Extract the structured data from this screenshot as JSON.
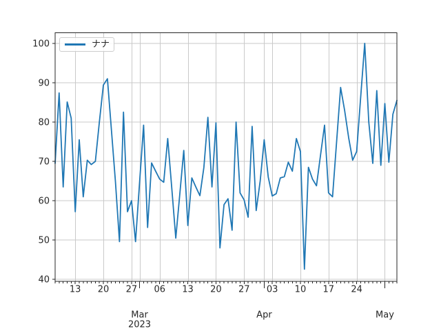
{
  "chart_data": {
    "type": "line",
    "title": "",
    "xlabel": "",
    "ylabel": "",
    "grid": true,
    "legend_position": "upper left",
    "background": "#ffffff",
    "colors": {
      "line": "#1f77b4",
      "grid": "#c9c9c9",
      "spine": "#262626",
      "tick_label": "#262626",
      "legend_border": "#cccccc"
    },
    "ylim": [
      39.5,
      102.7
    ],
    "yticks": [
      40,
      50,
      60,
      70,
      80,
      90,
      100
    ],
    "xticks_week": [
      {
        "date": "2023-02-13",
        "label": "13"
      },
      {
        "date": "2023-02-20",
        "label": "20"
      },
      {
        "date": "2023-02-27",
        "label": "27"
      },
      {
        "date": "2023-03-06",
        "label": "06"
      },
      {
        "date": "2023-03-13",
        "label": "13"
      },
      {
        "date": "2023-03-20",
        "label": "20"
      },
      {
        "date": "2023-03-27",
        "label": "27"
      },
      {
        "date": "2023-04-03",
        "label": "03"
      },
      {
        "date": "2023-04-10",
        "label": "10"
      },
      {
        "date": "2023-04-17",
        "label": "17"
      },
      {
        "date": "2023-04-24",
        "label": "24"
      },
      {
        "date": "2023-05-01",
        "label": ""
      }
    ],
    "xticks_month": [
      {
        "date": "2023-03-01",
        "label": "Mar",
        "sublabel": "2023"
      },
      {
        "date": "2023-04-01",
        "label": "Apr",
        "sublabel": ""
      },
      {
        "date": "2023-05-01",
        "label": "May",
        "sublabel": ""
      }
    ],
    "x": [
      "2023-02-08",
      "2023-02-09",
      "2023-02-10",
      "2023-02-11",
      "2023-02-12",
      "2023-02-13",
      "2023-02-14",
      "2023-02-15",
      "2023-02-16",
      "2023-02-17",
      "2023-02-18",
      "2023-02-19",
      "2023-02-20",
      "2023-02-21",
      "2023-02-22",
      "2023-02-23",
      "2023-02-24",
      "2023-02-25",
      "2023-02-26",
      "2023-02-27",
      "2023-02-28",
      "2023-03-01",
      "2023-03-02",
      "2023-03-03",
      "2023-03-04",
      "2023-03-05",
      "2023-03-06",
      "2023-03-07",
      "2023-03-08",
      "2023-03-09",
      "2023-03-10",
      "2023-03-11",
      "2023-03-12",
      "2023-03-13",
      "2023-03-14",
      "2023-03-15",
      "2023-03-16",
      "2023-03-17",
      "2023-03-18",
      "2023-03-19",
      "2023-03-20",
      "2023-03-21",
      "2023-03-22",
      "2023-03-23",
      "2023-03-24",
      "2023-03-25",
      "2023-03-26",
      "2023-03-27",
      "2023-03-28",
      "2023-03-29",
      "2023-03-30",
      "2023-03-31",
      "2023-04-01",
      "2023-04-02",
      "2023-04-03",
      "2023-04-04",
      "2023-04-05",
      "2023-04-06",
      "2023-04-07",
      "2023-04-08",
      "2023-04-09",
      "2023-04-10",
      "2023-04-11",
      "2023-04-12",
      "2023-04-13",
      "2023-04-14",
      "2023-04-15",
      "2023-04-16",
      "2023-04-17",
      "2023-04-18",
      "2023-04-19",
      "2023-04-20",
      "2023-04-21",
      "2023-04-22",
      "2023-04-23",
      "2023-04-24",
      "2023-04-25",
      "2023-04-26",
      "2023-04-27",
      "2023-04-28",
      "2023-04-29",
      "2023-04-30",
      "2023-05-01",
      "2023-05-02",
      "2023-05-03",
      "2023-05-04"
    ],
    "series": [
      {
        "name": "ナナ",
        "color": "#1f77b4",
        "values": [
          69.5,
          87.4,
          63.5,
          85.1,
          81.0,
          57.2,
          75.5,
          61.0,
          70.3,
          69.2,
          70.0,
          80.0,
          89.4,
          91.0,
          78.0,
          64.9,
          49.6,
          82.5,
          57.2,
          60.0,
          49.6,
          64.5,
          79.2,
          53.2,
          69.6,
          67.5,
          65.5,
          64.7,
          75.8,
          63.4,
          50.5,
          61.6,
          72.8,
          53.7,
          65.8,
          63.5,
          61.3,
          68.5,
          81.2,
          63.5,
          79.8,
          48.0,
          59.0,
          60.5,
          52.5,
          80.0,
          62.0,
          60.2,
          55.8,
          78.9,
          57.5,
          65.0,
          75.5,
          66.0,
          61.2,
          61.8,
          65.8,
          66.1,
          69.8,
          67.5,
          75.8,
          72.5,
          42.6,
          68.5,
          65.5,
          63.8,
          71.5,
          79.2,
          62.0,
          61.0,
          75.0,
          88.8,
          83.0,
          76.0,
          70.3,
          72.5,
          86.5,
          100.0,
          80.0,
          69.5,
          88.0,
          69.0,
          84.7,
          69.8,
          82.0,
          85.5
        ]
      }
    ]
  }
}
